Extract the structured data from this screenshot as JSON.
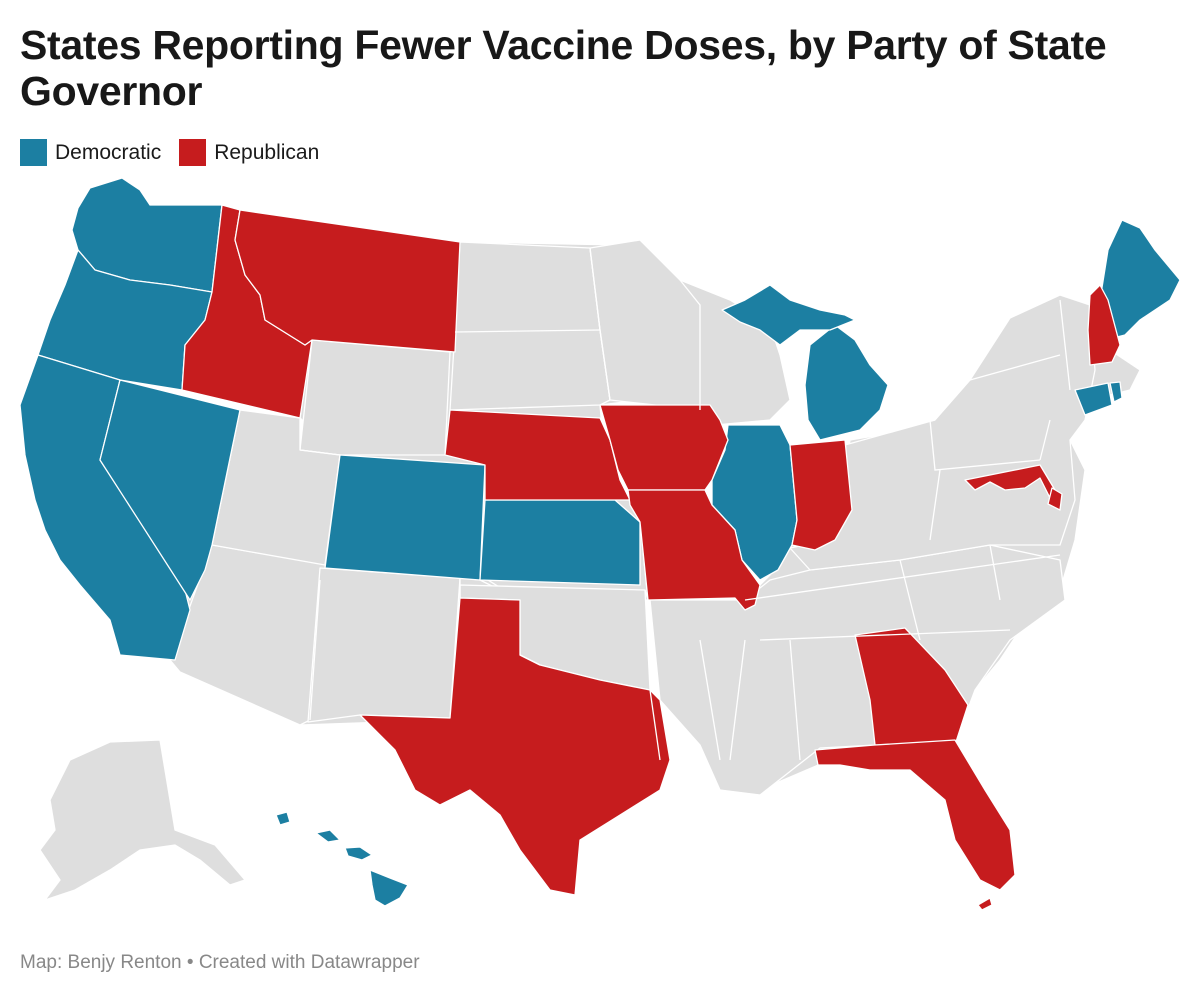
{
  "title": "States Reporting Fewer Vaccine Doses, by Party of State Governor",
  "legend": [
    {
      "label": "Democratic",
      "color": "#1c7fa2"
    },
    {
      "label": "Republican",
      "color": "#c61c1e"
    }
  ],
  "colors": {
    "democratic": "#1c7fa2",
    "republican": "#c61c1e",
    "no_data": "#dedede",
    "border": "#ffffff"
  },
  "footer": {
    "credit": "Map: Benjy Renton",
    "separator": "•",
    "created_with": "Created with Datawrapper"
  },
  "states": {
    "democratic": [
      "Washington",
      "Oregon",
      "California",
      "Nevada",
      "Colorado",
      "Kansas",
      "Illinois",
      "Michigan",
      "Maine",
      "Connecticut",
      "Rhode Island",
      "Hawaii"
    ],
    "republican": [
      "Idaho",
      "Montana",
      "Nebraska",
      "Iowa",
      "Missouri",
      "Indiana",
      "Texas",
      "Georgia",
      "Florida",
      "New Hampshire",
      "Maryland"
    ]
  }
}
